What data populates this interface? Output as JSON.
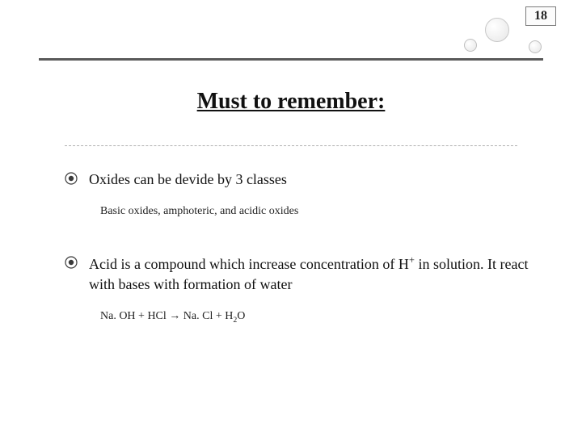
{
  "page_number": "18",
  "title": "Must to remember:",
  "colors": {
    "rule": "#5a5a5a",
    "bullet_ring": "#3a3a3a",
    "bullet_fill": "#3a3a3a",
    "text": "#111111",
    "dashed": "#b0b0b0",
    "decoration_border": "#bfbfbf"
  },
  "items": [
    {
      "heading": "Oxides can be devide by 3 classes",
      "body": "Basic oxides, amphoteric, and acidic oxides"
    },
    {
      "heading": "Acid is a compound which increase concentration of H<sup>+</sup> in solution. It react with bases with formation of water",
      "body": "Na. OH + HCl → Na. Cl + H<sub>2</sub>O"
    }
  ]
}
